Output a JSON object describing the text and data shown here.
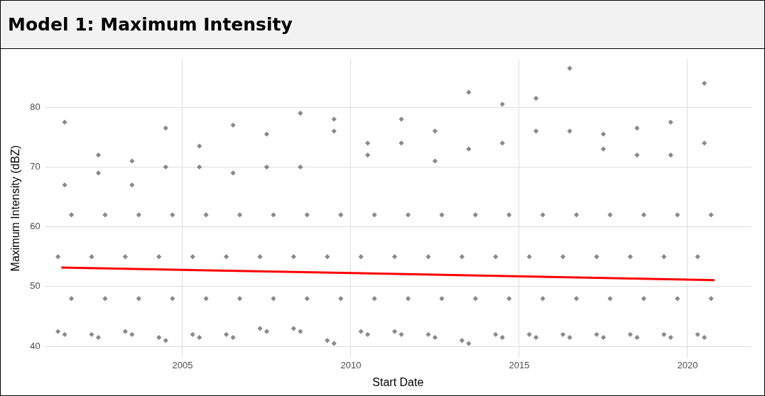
{
  "chart_data": {
    "type": "scatter",
    "title": "Model 1: Maximum Intensity",
    "xlabel": "Start Date",
    "ylabel": "Maximum Intensity (dBZ)",
    "xlim": [
      2000.9,
      2021.9
    ],
    "ylim": [
      38.1,
      88.1
    ],
    "xticks": [
      2005,
      2010,
      2015,
      2020
    ],
    "yticks": [
      40,
      50,
      60,
      70,
      80
    ],
    "grid": true,
    "series": [
      {
        "marker": "diamond",
        "color": "#000000",
        "x": [
          2001.3,
          2001.5,
          2001.7,
          2001.3,
          2001.7,
          2001.5,
          2001.5,
          2002.3,
          2002.5,
          2002.7,
          2002.3,
          2002.7,
          2002.5,
          2002.5,
          2003.3,
          2003.5,
          2003.7,
          2003.3,
          2003.7,
          2003.5,
          2003.5,
          2004.3,
          2004.5,
          2004.7,
          2004.3,
          2004.7,
          2004.5,
          2004.5,
          2005.3,
          2005.5,
          2005.7,
          2005.3,
          2005.7,
          2005.5,
          2005.5,
          2006.3,
          2006.5,
          2006.7,
          2006.3,
          2006.7,
          2006.5,
          2006.5,
          2007.3,
          2007.5,
          2007.7,
          2007.3,
          2007.7,
          2007.5,
          2007.5,
          2008.3,
          2008.5,
          2008.7,
          2008.3,
          2008.7,
          2008.5,
          2008.5,
          2009.3,
          2009.5,
          2009.7,
          2009.3,
          2009.7,
          2009.5,
          2009.5,
          2010.3,
          2010.5,
          2010.7,
          2010.3,
          2010.7,
          2010.5,
          2010.5,
          2011.3,
          2011.5,
          2011.7,
          2011.3,
          2011.7,
          2011.5,
          2011.5,
          2012.3,
          2012.5,
          2012.7,
          2012.3,
          2012.7,
          2012.5,
          2012.5,
          2013.3,
          2013.5,
          2013.7,
          2013.3,
          2013.7,
          2013.5,
          2013.5,
          2014.3,
          2014.5,
          2014.7,
          2014.3,
          2014.7,
          2014.5,
          2014.5,
          2015.3,
          2015.5,
          2015.7,
          2015.3,
          2015.7,
          2015.5,
          2015.5,
          2016.3,
          2016.5,
          2016.7,
          2016.3,
          2016.7,
          2016.5,
          2016.5,
          2017.3,
          2017.5,
          2017.7,
          2017.3,
          2017.7,
          2017.5,
          2017.5,
          2018.3,
          2018.5,
          2018.7,
          2018.3,
          2018.7,
          2018.5,
          2018.5,
          2019.3,
          2019.5,
          2019.7,
          2019.3,
          2019.7,
          2019.5,
          2019.5,
          2020.3,
          2020.5,
          2020.7,
          2020.3,
          2020.7,
          2020.5,
          2020.5
        ],
        "values": [
          42.5,
          42,
          48,
          55,
          62,
          67,
          77.5,
          42,
          41.5,
          48,
          55,
          62,
          69,
          72,
          42.5,
          42,
          48,
          55,
          62,
          67,
          71,
          41.5,
          41,
          48,
          55,
          62,
          70,
          76.5,
          42,
          41.5,
          48,
          55,
          62,
          70,
          73.5,
          42,
          41.5,
          48,
          55,
          62,
          69,
          77,
          43,
          42.5,
          48,
          55,
          62,
          70,
          75.5,
          43,
          42.5,
          48,
          55,
          62,
          70,
          79,
          41,
          40.5,
          48,
          55,
          62,
          76,
          78,
          42.5,
          42,
          48,
          55,
          62,
          72,
          74,
          42.5,
          42,
          48,
          55,
          62,
          74,
          78,
          42,
          41.5,
          48,
          55,
          62,
          71,
          76,
          41,
          40.5,
          48,
          55,
          62,
          73,
          82.5,
          42,
          41.5,
          48,
          55,
          62,
          74,
          80.5,
          42,
          41.5,
          48,
          55,
          62,
          76,
          81.5,
          42,
          41.5,
          48,
          55,
          62,
          76,
          86.5,
          42,
          41.5,
          48,
          55,
          62,
          73,
          75.5,
          42,
          41.5,
          48,
          55,
          62,
          72,
          76.5,
          42,
          41.5,
          48,
          55,
          62,
          72,
          77.5,
          42,
          41.5,
          48,
          55,
          62,
          74,
          84
        ]
      },
      {
        "type": "line",
        "color": "#ff0000",
        "x": [
          2001.4,
          2020.8
        ],
        "values": [
          53.2,
          51.1
        ]
      }
    ]
  }
}
